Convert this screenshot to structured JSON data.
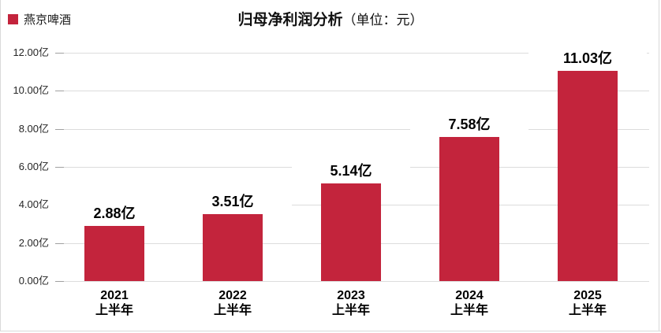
{
  "legend": {
    "label": "燕京啤酒"
  },
  "title": {
    "main": "归母净利润分析",
    "unit": "（单位：元）"
  },
  "colors": {
    "bar_red": "#c3243c",
    "gridline": "#dcdcdc",
    "tick": "#a0a0a0",
    "label_text": "#000000"
  },
  "chart_data": {
    "type": "bar",
    "title": "归母净利润分析",
    "title_unit": "（单位：元）",
    "legend_entries": [
      "燕京啤酒"
    ],
    "legend_position": "top-left",
    "categories": [
      [
        "2021",
        "上半年"
      ],
      [
        "2022",
        "上半年"
      ],
      [
        "2023",
        "上半年"
      ],
      [
        "2024",
        "上半年"
      ],
      [
        "2025",
        "上半年"
      ]
    ],
    "values": [
      2.88,
      3.51,
      5.14,
      7.58,
      11.03
    ],
    "value_labels": [
      "2.88亿",
      "3.51亿",
      "5.14亿",
      "7.58亿",
      "11.03亿"
    ],
    "ytick_labels": [
      "0.00亿",
      "2.00亿",
      "4.00亿",
      "6.00亿",
      "8.00亿",
      "10.00亿",
      "12.00亿"
    ],
    "ytick_values": [
      0,
      2,
      4,
      6,
      8,
      10,
      12
    ],
    "ylim": [
      0,
      12
    ],
    "xlabel": "",
    "ylabel": "",
    "grid": true,
    "bar_color": "#c3243c"
  }
}
